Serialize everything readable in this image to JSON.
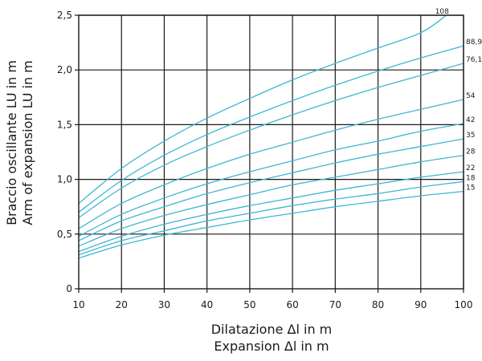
{
  "chart_data": {
    "type": "line",
    "xlabel": [
      "Dilatazione Δl in m",
      "Expansion Δl in m"
    ],
    "ylabel": [
      "Braccio oscillante LU in m",
      "Arm of expansion LU in m"
    ],
    "xlim": [
      10,
      100
    ],
    "ylim": [
      0,
      2.5
    ],
    "xticks": [
      10,
      20,
      30,
      40,
      50,
      60,
      70,
      80,
      90,
      100
    ],
    "yticks": [
      "0",
      "0,5",
      "1,0",
      "1,5",
      "2,0",
      "2,5"
    ],
    "grid": true,
    "line_color": "#3fb6d2",
    "series": [
      {
        "name": "15",
        "x": [
          10,
          20,
          30,
          40,
          50,
          60,
          70,
          80,
          90,
          100
        ],
        "y": [
          0.28,
          0.4,
          0.49,
          0.56,
          0.63,
          0.69,
          0.75,
          0.8,
          0.85,
          0.89
        ]
      },
      {
        "name": "18",
        "x": [
          10,
          20,
          30,
          40,
          50,
          60,
          70,
          80,
          90,
          100
        ],
        "y": [
          0.31,
          0.44,
          0.53,
          0.62,
          0.69,
          0.76,
          0.82,
          0.87,
          0.93,
          0.98
        ]
      },
      {
        "name": "22",
        "x": [
          10,
          20,
          30,
          40,
          50,
          60,
          70,
          80,
          90,
          100
        ],
        "y": [
          0.34,
          0.48,
          0.59,
          0.68,
          0.76,
          0.83,
          0.9,
          0.96,
          1.02,
          1.07
        ]
      },
      {
        "name": "28",
        "x": [
          10,
          20,
          30,
          40,
          50,
          60,
          70,
          80,
          90,
          100
        ],
        "y": [
          0.39,
          0.55,
          0.67,
          0.77,
          0.86,
          0.95,
          1.02,
          1.09,
          1.16,
          1.22
        ]
      },
      {
        "name": "35",
        "x": [
          10,
          20,
          30,
          40,
          50,
          60,
          70,
          80,
          90,
          100
        ],
        "y": [
          0.44,
          0.62,
          0.75,
          0.87,
          0.97,
          1.06,
          1.15,
          1.23,
          1.3,
          1.37
        ]
      },
      {
        "name": "42",
        "x": [
          10,
          20,
          30,
          40,
          50,
          60,
          70,
          80,
          90,
          100
        ],
        "y": [
          0.48,
          0.68,
          0.83,
          0.96,
          1.07,
          1.17,
          1.27,
          1.35,
          1.44,
          1.51
        ]
      },
      {
        "name": "54",
        "x": [
          10,
          20,
          30,
          40,
          50,
          60,
          70,
          80,
          90,
          100
        ],
        "y": [
          0.55,
          0.78,
          0.95,
          1.1,
          1.23,
          1.34,
          1.45,
          1.55,
          1.64,
          1.73
        ]
      },
      {
        "name": "76,1",
        "x": [
          10,
          20,
          30,
          40,
          50,
          60,
          70,
          80,
          90,
          100
        ],
        "y": [
          0.65,
          0.92,
          1.13,
          1.3,
          1.45,
          1.59,
          1.72,
          1.84,
          1.95,
          2.06
        ]
      },
      {
        "name": "88,9",
        "x": [
          10,
          20,
          30,
          40,
          50,
          60,
          70,
          80,
          90,
          100
        ],
        "y": [
          0.7,
          0.99,
          1.22,
          1.41,
          1.57,
          1.72,
          1.86,
          1.99,
          2.11,
          2.22
        ]
      },
      {
        "name": "108",
        "x": [
          10,
          20,
          30,
          40,
          50,
          60,
          70,
          80,
          90,
          96
        ],
        "y": [
          0.78,
          1.1,
          1.35,
          1.56,
          1.74,
          1.91,
          2.06,
          2.2,
          2.34,
          2.5
        ]
      }
    ]
  }
}
